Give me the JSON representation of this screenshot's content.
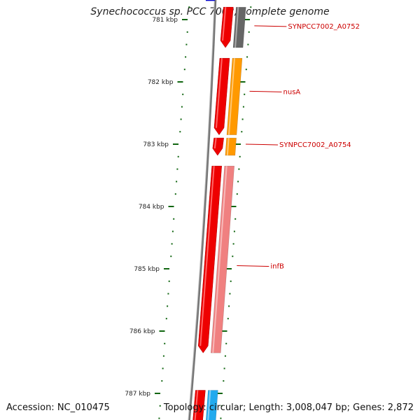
{
  "header": {
    "title": "Synechococcus sp. PCC 7002, complete genome"
  },
  "footer": {
    "accession": "Accession: NC_010475",
    "summary": "Topology: circular; Length: 3,008,047 bp; Genes: 2,872"
  },
  "map": {
    "ticks": [
      {
        "kbp": 781,
        "label": "781 kbp"
      },
      {
        "kbp": 782,
        "label": "782 kbp"
      },
      {
        "kbp": 783,
        "label": "783 kbp"
      },
      {
        "kbp": 784,
        "label": "784 kbp"
      },
      {
        "kbp": 785,
        "label": "785 kbp"
      },
      {
        "kbp": 786,
        "label": "786 kbp"
      },
      {
        "kbp": 787,
        "label": "787 kbp"
      }
    ],
    "genes": [
      {
        "name": "SYNPCC7002_A0752",
        "start_kbp": 780.8,
        "end_kbp": 781.45,
        "color": "#ee0000",
        "cog_color": "#666666",
        "label_kbp": 781.1
      },
      {
        "name": "nusA",
        "start_kbp": 781.62,
        "end_kbp": 782.85,
        "color": "#ee0000",
        "cog_color": "#ff9900",
        "label_kbp": 782.15
      },
      {
        "name": "SYNPCC7002_A0754",
        "start_kbp": 782.9,
        "end_kbp": 783.18,
        "color": "#ee0000",
        "cog_color": "#ff9900",
        "label_kbp": 783.0
      },
      {
        "name": "infB",
        "start_kbp": 783.35,
        "end_kbp": 786.35,
        "color": "#ee0000",
        "cog_color": "#f08080",
        "label_kbp": 784.95
      },
      {
        "name": "",
        "start_kbp": 786.95,
        "end_kbp": 787.6,
        "color": "#ee0000",
        "cog_color": "#22aaee"
      }
    ],
    "edge_genes": [
      {
        "start_kbp": 780.5,
        "end_kbp": 780.7,
        "color": "#0000cc"
      }
    ],
    "colors": {
      "backbone": "#777777",
      "ticks": "#116611",
      "label": "#cc0000",
      "leader": "#cc0000"
    }
  }
}
